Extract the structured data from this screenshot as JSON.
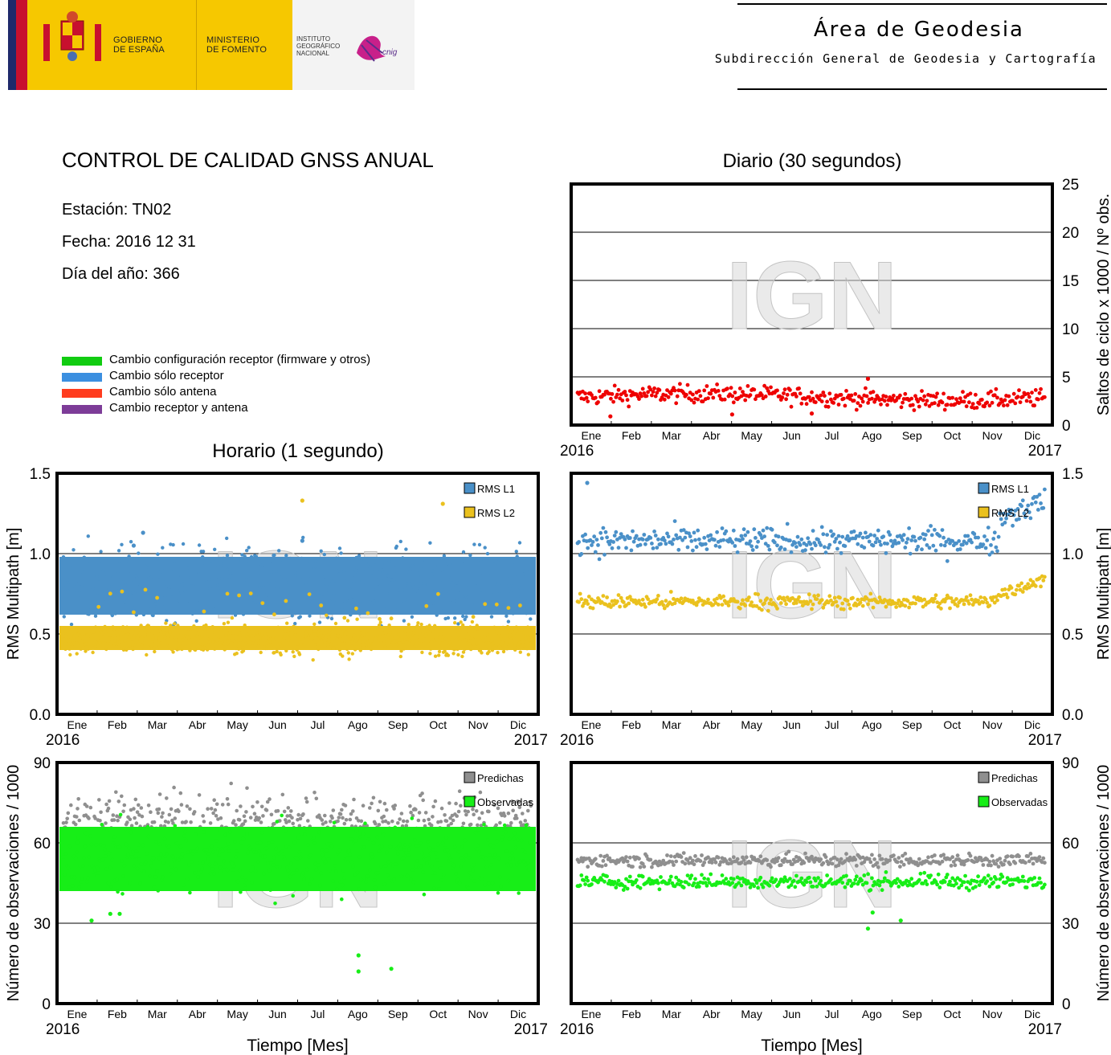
{
  "header": {
    "gobierno": "GOBIERNO\nDE ESPAÑA",
    "ministerio": "MINISTERIO\nDE FOMENTO",
    "instituto": "INSTITUTO\nGEOGRÁFICO\nNACIONAL",
    "cnig": "cnig",
    "area_title": "Área de Geodesia",
    "area_subtitle": "Subdirección General de Geodesia y Cartografía"
  },
  "info": {
    "title": "CONTROL DE CALIDAD GNSS ANUAL",
    "station": "Estación: TN02",
    "date": "Fecha: 2016 12 31",
    "doy": "Día del año: 366"
  },
  "legend": [
    {
      "label": "Cambio configuración receptor (firmware y otros)",
      "color": "#11cc11"
    },
    {
      "label": "Cambio sólo receptor",
      "color": "#3b8fe0"
    },
    {
      "label": "Cambio sólo antena",
      "color": "#ff3c1e"
    },
    {
      "label": "Cambio receptor y antena",
      "color": "#7d3c98"
    }
  ],
  "watermark": "IGN",
  "colors": {
    "cycle": "#ee0000",
    "l1": "#4a90c8",
    "l2": "#eac11e",
    "pred": "#8f8f8f",
    "obs": "#17ee17"
  },
  "chart_data": [
    {
      "id": "cycle",
      "type": "scatter",
      "title": "Diario (30 segundos)",
      "ylabel": "Saltos de ciclo x 1000 / Nº obs.",
      "xlabel": "",
      "months": [
        "Ene",
        "Feb",
        "Mar",
        "Abr",
        "May",
        "Jun",
        "Jul",
        "Ago",
        "Sep",
        "Oct",
        "Nov",
        "Dic"
      ],
      "year_start": "2016",
      "year_end": "2017",
      "ylim": [
        0,
        25
      ],
      "yticks": [
        0,
        5,
        10,
        15,
        20,
        25
      ],
      "grid": true,
      "series": [
        {
          "values_approx": "mean 3, range 1-5, daily points"
        }
      ]
    },
    {
      "id": "mp_hourly",
      "type": "scatter",
      "title": "Horario (1 segundo)",
      "ylabel": "RMS Multipath [m]",
      "ylim": [
        0,
        1.5
      ],
      "yticks": [
        "0.0",
        "0.5",
        "1.0",
        "1.5"
      ],
      "months": [
        "Ene",
        "Feb",
        "Mar",
        "Abr",
        "May",
        "Jun",
        "Jul",
        "Ago",
        "Sep",
        "Oct",
        "Nov",
        "Dic"
      ],
      "year_start": "2016",
      "year_end": "2017",
      "series": [
        {
          "name": "RMS L1",
          "band": [
            0.62,
            0.98
          ]
        },
        {
          "name": "RMS L2",
          "band": [
            0.38,
            0.56
          ]
        }
      ]
    },
    {
      "id": "mp_daily",
      "type": "scatter",
      "title": "",
      "ylabel": "RMS Multipath [m]",
      "ylim": [
        0,
        1.5
      ],
      "yticks": [
        "0.0",
        "0.5",
        "1.0",
        "1.5"
      ],
      "months": [
        "Ene",
        "Feb",
        "Mar",
        "Abr",
        "May",
        "Jun",
        "Jul",
        "Ago",
        "Sep",
        "Oct",
        "Nov",
        "Dic"
      ],
      "year_start": "2016",
      "year_end": "2017",
      "series": [
        {
          "name": "RMS L1",
          "mean": 1.08
        },
        {
          "name": "RMS L2",
          "mean": 0.7
        }
      ]
    },
    {
      "id": "obs_hourly",
      "type": "scatter",
      "title": "",
      "ylabel": "Número de observaciones / 1000",
      "xlabel": "Tiempo [Mes]",
      "ylim": [
        0,
        90
      ],
      "yticks": [
        0,
        30,
        60,
        90
      ],
      "months": [
        "Ene",
        "Feb",
        "Mar",
        "Abr",
        "May",
        "Jun",
        "Jul",
        "Ago",
        "Sep",
        "Oct",
        "Nov",
        "Dic"
      ],
      "year_start": "2016",
      "year_end": "2017",
      "series": [
        {
          "name": "Predichas",
          "band": [
            60,
            80
          ]
        },
        {
          "name": "Observadas",
          "band": [
            42,
            66
          ]
        }
      ]
    },
    {
      "id": "obs_daily",
      "type": "scatter",
      "title": "",
      "ylabel": "Número de observaciones / 1000",
      "xlabel": "Tiempo [Mes]",
      "ylim": [
        0,
        90
      ],
      "yticks": [
        0,
        30,
        60,
        90
      ],
      "months": [
        "Ene",
        "Feb",
        "Mar",
        "Abr",
        "May",
        "Jun",
        "Jul",
        "Ago",
        "Sep",
        "Oct",
        "Nov",
        "Dic"
      ],
      "year_start": "2016",
      "year_end": "2017",
      "series": [
        {
          "name": "Predichas",
          "mean": 53
        },
        {
          "name": "Observadas",
          "mean": 45
        }
      ]
    }
  ]
}
